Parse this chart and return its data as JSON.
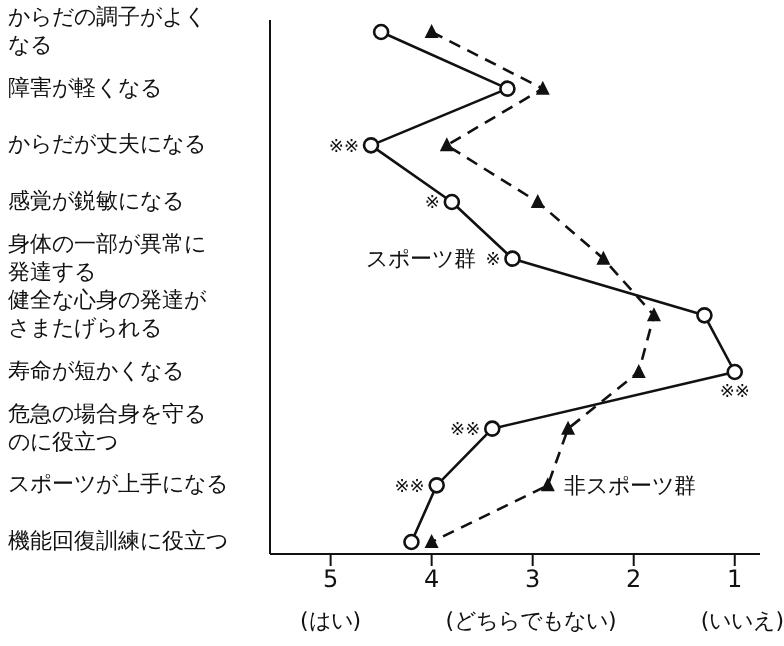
{
  "chart_data": {
    "type": "line",
    "orientation": "horizontal",
    "categories": [
      "からだの調子がよくなる",
      "障害が軽くなる",
      "からだが丈夫になる",
      "感覚が鋭敏になる",
      "身体の一部が異常に発達する",
      "健全な心身の発達がさまたげられる",
      "寿命が短かくなる",
      "危急の場合身を守るのに役立つ",
      "スポーツが上手になる",
      "機能回復訓練に役立つ"
    ],
    "series": [
      {
        "name": "スポーツ群",
        "color": "#111111",
        "marker": "circle",
        "line_style": "solid",
        "values": [
          4.5,
          3.25,
          4.6,
          3.8,
          3.2,
          1.3,
          1.0,
          3.4,
          3.95,
          4.2
        ]
      },
      {
        "name": "非スポーツ群",
        "color": "#111111",
        "marker": "triangle",
        "line_style": "dashed",
        "values": [
          4.0,
          2.9,
          3.85,
          2.95,
          2.3,
          1.8,
          1.95,
          2.65,
          2.85,
          4.0
        ]
      }
    ],
    "xlim": [
      5.6,
      0.75
    ],
    "xticks": [
      5,
      4,
      3,
      2,
      1
    ],
    "grid": false,
    "legend": false,
    "annotations": [
      {
        "text": "※※",
        "x": 4.6,
        "y": "からだが丈夫になる"
      },
      {
        "text": "※",
        "x": 3.8,
        "y": "感覚が鋭敏になる"
      },
      {
        "text": "※",
        "x": 3.2,
        "y": "身体の一部が異常に発達する"
      },
      {
        "text": "※※",
        "x": 1.0,
        "y": "寿命が短かくなる"
      },
      {
        "text": "※※",
        "x": 3.4,
        "y": "危急の場合身を守るのに役立つ"
      },
      {
        "text": "※※",
        "x": 3.95,
        "y": "スポーツが上手になる"
      },
      "(はい)",
      "(どちらでもない)",
      "(いいえ)"
    ]
  }
}
